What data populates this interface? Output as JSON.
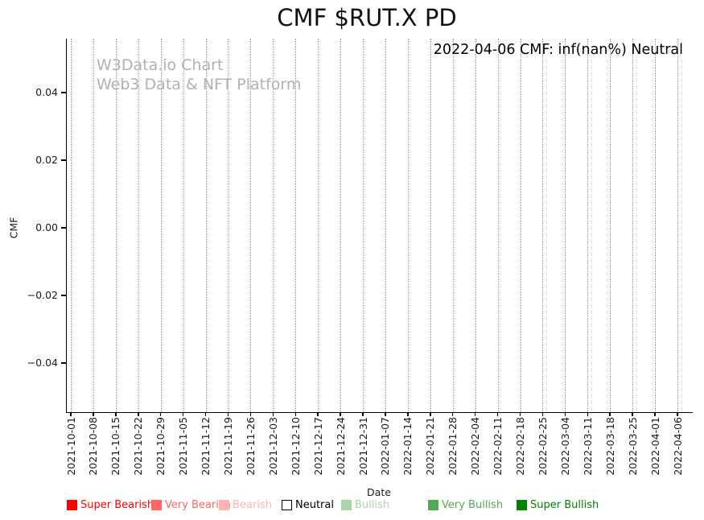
{
  "title": "CMF $RUT.X PD",
  "annotation": "2022-04-06 CMF: inf(nan%) Neutral",
  "watermark": {
    "line1": "W3Data.io Chart",
    "line2": "Web3 Data & NFT Platform",
    "color": "#b0b0b0"
  },
  "chart_data": {
    "type": "bar",
    "title": "CMF $RUT.X PD",
    "xlabel": "Date",
    "ylabel": "CMF",
    "x": [
      "2021-10-01",
      "2021-10-08",
      "2021-10-15",
      "2021-10-22",
      "2021-10-29",
      "2021-11-05",
      "2021-11-12",
      "2021-11-19",
      "2021-11-26",
      "2021-12-03",
      "2021-12-10",
      "2021-12-17",
      "2021-12-24",
      "2021-12-31",
      "2022-01-07",
      "2022-01-14",
      "2022-01-21",
      "2022-01-28",
      "2022-02-04",
      "2022-02-11",
      "2022-02-18",
      "2022-02-25",
      "2022-03-04",
      "2022-03-11",
      "2022-03-18",
      "2022-03-25",
      "2022-04-01",
      "2022-04-06"
    ],
    "series": [],
    "y_ticks": [
      0.04,
      0.02,
      0.0,
      -0.02,
      -0.04
    ],
    "y_tick_labels": [
      "0.04",
      "0.02",
      "0.00",
      "−0.02",
      "−0.04"
    ],
    "ylim": [
      -0.055,
      0.056
    ],
    "grid": {
      "vertical": true,
      "style": "dotted",
      "color": "#9a9a9a"
    },
    "legend_position": "bottom",
    "annotation": "2022-04-06 CMF: inf(nan%) Neutral"
  },
  "legend": {
    "items": [
      {
        "label": "Super Bearish",
        "fill": "#ff0000",
        "edge": "#ff0000",
        "text_color": "#ff0000"
      },
      {
        "label": "Very Bearish",
        "fill": "#ff6666",
        "edge": "#ff6666",
        "text_color": "#ff6666"
      },
      {
        "label": "Bearish",
        "fill": "#ffb3b3",
        "edge": "#ffb3b3",
        "text_color": "#ffb3b3"
      },
      {
        "label": "Neutral",
        "fill": "#ffffff",
        "edge": "#000000",
        "text_color": "#000000"
      },
      {
        "label": "Bullish",
        "fill": "#a9d6a9",
        "edge": "#a9d6a9",
        "text_color": "#a9d6a9"
      },
      {
        "label": "Very Bullish",
        "fill": "#55a855",
        "edge": "#55a855",
        "text_color": "#55a855"
      },
      {
        "label": "Super Bullish",
        "fill": "#048204",
        "edge": "#048204",
        "text_color": "#048204"
      }
    ]
  }
}
